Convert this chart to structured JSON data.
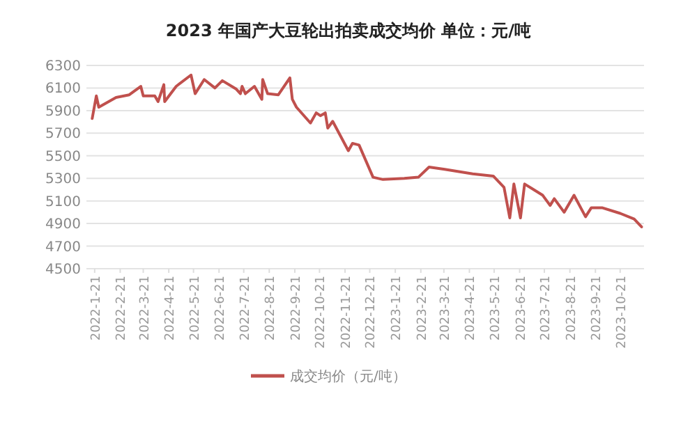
{
  "chart_data": {
    "type": "line",
    "title": "2023 年国产大豆轮出拍卖成交均价  单位：元/吨",
    "x": [
      "2022-01-18",
      "2022-01-23",
      "2022-01-26",
      "2022-02-16",
      "2022-03-04",
      "2022-03-18",
      "2022-03-21",
      "2022-04-04",
      "2022-04-08",
      "2022-04-15",
      "2022-04-16",
      "2022-04-30",
      "2022-05-18",
      "2022-05-23",
      "2022-06-03",
      "2022-06-16",
      "2022-06-25",
      "2022-07-12",
      "2022-07-17",
      "2022-07-19",
      "2022-07-23",
      "2022-08-03",
      "2022-08-12",
      "2022-08-13",
      "2022-08-19",
      "2022-09-01",
      "2022-09-15",
      "2022-09-18",
      "2022-09-23",
      "2022-10-10",
      "2022-10-17",
      "2022-10-22",
      "2022-10-28",
      "2022-10-31",
      "2022-11-06",
      "2022-11-25",
      "2022-11-30",
      "2022-12-08",
      "2022-12-25",
      "2023-01-06",
      "2023-02-01",
      "2023-02-18",
      "2023-03-03",
      "2023-03-22",
      "2023-04-25",
      "2023-05-20",
      "2023-06-02",
      "2023-06-09",
      "2023-06-14",
      "2023-06-22",
      "2023-06-27",
      "2023-07-19",
      "2023-07-28",
      "2023-08-02",
      "2023-08-14",
      "2023-08-26",
      "2023-09-09",
      "2023-09-16",
      "2023-09-29",
      "2023-10-21",
      "2023-11-07",
      "2023-11-16"
    ],
    "series": [
      {
        "name": "成交均价（元/吨）",
        "color": "#c0504d",
        "values": [
          5830,
          6030,
          5930,
          6016,
          6040,
          6115,
          6030,
          6030,
          5980,
          6130,
          5980,
          6115,
          6215,
          6050,
          6175,
          6100,
          6165,
          6090,
          6050,
          6115,
          6050,
          6115,
          6000,
          6175,
          6050,
          6040,
          6190,
          6000,
          5930,
          5790,
          5880,
          5855,
          5880,
          5745,
          5805,
          5545,
          5610,
          5595,
          5310,
          5290,
          5300,
          5310,
          5400,
          5380,
          5340,
          5320,
          5220,
          4950,
          5250,
          4950,
          5250,
          5150,
          5060,
          5120,
          5000,
          5150,
          4960,
          5040,
          5040,
          4990,
          4940,
          4870
        ]
      }
    ],
    "xlim": [
      "2022-01-11",
      "2023-11-19"
    ],
    "xticks": [
      {
        "value": "2022-01-21",
        "label": "2022-1-21"
      },
      {
        "value": "2022-02-21",
        "label": "2022-2-21"
      },
      {
        "value": "2022-03-21",
        "label": "2022-3-21"
      },
      {
        "value": "2022-04-21",
        "label": "2022-4-21"
      },
      {
        "value": "2022-05-21",
        "label": "2022-5-21"
      },
      {
        "value": "2022-06-21",
        "label": "2022-6-21"
      },
      {
        "value": "2022-07-21",
        "label": "2022-7-21"
      },
      {
        "value": "2022-08-21",
        "label": "2022-8-21"
      },
      {
        "value": "2022-09-21",
        "label": "2022-9-21"
      },
      {
        "value": "2022-10-21",
        "label": "2022-10-21"
      },
      {
        "value": "2022-11-21",
        "label": "2022-11-21"
      },
      {
        "value": "2022-12-21",
        "label": "2022-12-21"
      },
      {
        "value": "2023-01-21",
        "label": "2023-1-21"
      },
      {
        "value": "2023-02-21",
        "label": "2023-2-21"
      },
      {
        "value": "2023-03-21",
        "label": "2023-3-21"
      },
      {
        "value": "2023-04-21",
        "label": "2023-4-21"
      },
      {
        "value": "2023-05-21",
        "label": "2023-5-21"
      },
      {
        "value": "2023-06-21",
        "label": "2023-6-21"
      },
      {
        "value": "2023-07-21",
        "label": "2023-7-21"
      },
      {
        "value": "2023-08-21",
        "label": "2023-8-21"
      },
      {
        "value": "2023-09-21",
        "label": "2023-9-21"
      },
      {
        "value": "2023-10-21",
        "label": "2023-10-21"
      }
    ],
    "ylim": [
      4500,
      6300
    ],
    "yticks": [
      4500,
      4700,
      4900,
      5100,
      5300,
      5500,
      5700,
      5900,
      6100,
      6300
    ],
    "grid": "y",
    "legend": "bottom",
    "marker": "none",
    "line_style": "solid"
  }
}
